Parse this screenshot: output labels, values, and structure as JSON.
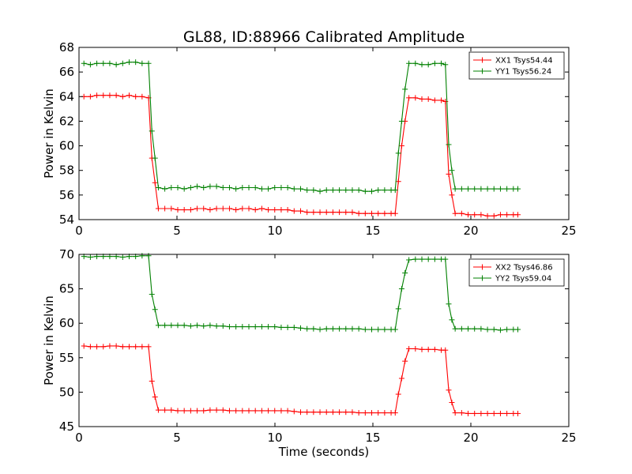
{
  "chart_data": [
    {
      "type": "line",
      "title": "GL88, ID:88966 Calibrated Amplitude",
      "xlabel": "",
      "ylabel": "Power in Kelvin",
      "xlim": [
        0,
        25
      ],
      "ylim": [
        54,
        68
      ],
      "xticks": [
        0,
        5,
        10,
        15,
        20,
        25
      ],
      "yticks": [
        54,
        56,
        58,
        60,
        62,
        64,
        66,
        68
      ],
      "grid": false,
      "legend_position": "top-right",
      "marker": "+",
      "series": [
        {
          "name": "XX1 Tsys54.44",
          "color": "#ff0000",
          "x": [
            0.25,
            0.58,
            0.91,
            1.24,
            1.57,
            1.9,
            2.23,
            2.56,
            2.89,
            3.22,
            3.55,
            3.72,
            3.88,
            4.05,
            4.38,
            4.71,
            5.04,
            5.37,
            5.7,
            6.03,
            6.36,
            6.69,
            7.02,
            7.35,
            7.68,
            8.01,
            8.34,
            8.67,
            9.0,
            9.33,
            9.66,
            9.99,
            10.32,
            10.65,
            10.98,
            11.31,
            11.64,
            11.97,
            12.3,
            12.63,
            12.96,
            13.29,
            13.62,
            13.95,
            14.28,
            14.61,
            14.94,
            15.27,
            15.6,
            15.93,
            16.14,
            16.3,
            16.47,
            16.64,
            16.84,
            17.17,
            17.5,
            17.83,
            18.16,
            18.49,
            18.7,
            18.87,
            19.03,
            19.2,
            19.53,
            19.86,
            20.19,
            20.52,
            20.85,
            21.18,
            21.51,
            21.84,
            22.17,
            22.4
          ],
          "y": [
            64.0,
            64.0,
            64.1,
            64.1,
            64.1,
            64.1,
            64.0,
            64.1,
            64.0,
            64.0,
            63.9,
            59.0,
            57.0,
            54.9,
            54.9,
            54.9,
            54.8,
            54.8,
            54.8,
            54.9,
            54.9,
            54.8,
            54.9,
            54.9,
            54.9,
            54.8,
            54.9,
            54.9,
            54.8,
            54.9,
            54.8,
            54.8,
            54.8,
            54.8,
            54.7,
            54.7,
            54.6,
            54.6,
            54.6,
            54.6,
            54.6,
            54.6,
            54.6,
            54.6,
            54.5,
            54.5,
            54.5,
            54.5,
            54.5,
            54.5,
            54.5,
            57.1,
            60.0,
            62.0,
            63.9,
            63.9,
            63.8,
            63.8,
            63.7,
            63.7,
            63.6,
            57.7,
            56.0,
            54.5,
            54.5,
            54.4,
            54.4,
            54.4,
            54.3,
            54.3,
            54.4,
            54.4,
            54.4,
            54.4
          ]
        },
        {
          "name": "YY1 Tsys56.24",
          "color": "#008000",
          "x": [
            0.25,
            0.58,
            0.91,
            1.24,
            1.57,
            1.9,
            2.23,
            2.56,
            2.89,
            3.22,
            3.55,
            3.72,
            3.88,
            4.05,
            4.38,
            4.71,
            5.04,
            5.37,
            5.7,
            6.03,
            6.36,
            6.69,
            7.02,
            7.35,
            7.68,
            8.01,
            8.34,
            8.67,
            9.0,
            9.33,
            9.66,
            9.99,
            10.32,
            10.65,
            10.98,
            11.31,
            11.64,
            11.97,
            12.3,
            12.63,
            12.96,
            13.29,
            13.62,
            13.95,
            14.28,
            14.61,
            14.94,
            15.27,
            15.6,
            15.93,
            16.14,
            16.3,
            16.47,
            16.64,
            16.84,
            17.17,
            17.5,
            17.83,
            18.16,
            18.49,
            18.7,
            18.87,
            19.03,
            19.2,
            19.53,
            19.86,
            20.19,
            20.52,
            20.85,
            21.18,
            21.51,
            21.84,
            22.17,
            22.4
          ],
          "y": [
            66.7,
            66.6,
            66.7,
            66.7,
            66.7,
            66.6,
            66.7,
            66.8,
            66.8,
            66.7,
            66.7,
            61.2,
            59.0,
            56.6,
            56.5,
            56.6,
            56.6,
            56.5,
            56.6,
            56.7,
            56.6,
            56.7,
            56.7,
            56.6,
            56.6,
            56.5,
            56.6,
            56.6,
            56.6,
            56.5,
            56.5,
            56.6,
            56.6,
            56.6,
            56.5,
            56.5,
            56.4,
            56.4,
            56.3,
            56.4,
            56.4,
            56.4,
            56.4,
            56.4,
            56.4,
            56.3,
            56.3,
            56.4,
            56.4,
            56.4,
            56.4,
            59.4,
            62.0,
            64.6,
            66.7,
            66.7,
            66.6,
            66.6,
            66.7,
            66.7,
            66.6,
            60.1,
            58.0,
            56.5,
            56.5,
            56.5,
            56.5,
            56.5,
            56.5,
            56.5,
            56.5,
            56.5,
            56.5,
            56.5
          ]
        }
      ]
    },
    {
      "type": "line",
      "title": "",
      "xlabel": "Time (seconds)",
      "ylabel": "Power in Kelvin",
      "xlim": [
        0,
        25
      ],
      "ylim": [
        45,
        70
      ],
      "xticks": [
        0,
        5,
        10,
        15,
        20,
        25
      ],
      "yticks": [
        45,
        50,
        55,
        60,
        65,
        70
      ],
      "grid": false,
      "legend_position": "top-right",
      "marker": "+",
      "series": [
        {
          "name": "XX2 Tsys46.86",
          "color": "#ff0000",
          "x": [
            0.25,
            0.58,
            0.91,
            1.24,
            1.57,
            1.9,
            2.23,
            2.56,
            2.89,
            3.22,
            3.55,
            3.72,
            3.88,
            4.05,
            4.38,
            4.71,
            5.04,
            5.37,
            5.7,
            6.03,
            6.36,
            6.69,
            7.02,
            7.35,
            7.68,
            8.01,
            8.34,
            8.67,
            9.0,
            9.33,
            9.66,
            9.99,
            10.32,
            10.65,
            10.98,
            11.31,
            11.64,
            11.97,
            12.3,
            12.63,
            12.96,
            13.29,
            13.62,
            13.95,
            14.28,
            14.61,
            14.94,
            15.27,
            15.6,
            15.93,
            16.14,
            16.3,
            16.47,
            16.64,
            16.84,
            17.17,
            17.5,
            17.83,
            18.16,
            18.49,
            18.7,
            18.87,
            19.03,
            19.2,
            19.53,
            19.86,
            20.19,
            20.52,
            20.85,
            21.18,
            21.51,
            21.84,
            22.17,
            22.4
          ],
          "y": [
            56.7,
            56.6,
            56.6,
            56.6,
            56.7,
            56.7,
            56.6,
            56.6,
            56.6,
            56.6,
            56.6,
            51.6,
            49.3,
            47.4,
            47.4,
            47.4,
            47.3,
            47.3,
            47.3,
            47.3,
            47.3,
            47.4,
            47.4,
            47.4,
            47.3,
            47.3,
            47.3,
            47.3,
            47.3,
            47.3,
            47.3,
            47.3,
            47.3,
            47.3,
            47.2,
            47.1,
            47.1,
            47.1,
            47.1,
            47.1,
            47.1,
            47.1,
            47.1,
            47.1,
            47.0,
            47.0,
            47.0,
            47.0,
            47.0,
            47.0,
            47.0,
            49.7,
            52.0,
            54.5,
            56.3,
            56.3,
            56.2,
            56.2,
            56.2,
            56.1,
            56.1,
            50.3,
            48.5,
            47.0,
            47.0,
            46.9,
            46.9,
            46.9,
            46.9,
            46.9,
            46.9,
            46.9,
            46.9,
            46.9
          ]
        },
        {
          "name": "YY2 Tsys59.04",
          "color": "#008000",
          "x": [
            0.25,
            0.58,
            0.91,
            1.24,
            1.57,
            1.9,
            2.23,
            2.56,
            2.89,
            3.22,
            3.55,
            3.72,
            3.88,
            4.05,
            4.38,
            4.71,
            5.04,
            5.37,
            5.7,
            6.03,
            6.36,
            6.69,
            7.02,
            7.35,
            7.68,
            8.01,
            8.34,
            8.67,
            9.0,
            9.33,
            9.66,
            9.99,
            10.32,
            10.65,
            10.98,
            11.31,
            11.64,
            11.97,
            12.3,
            12.63,
            12.96,
            13.29,
            13.62,
            13.95,
            14.28,
            14.61,
            14.94,
            15.27,
            15.6,
            15.93,
            16.14,
            16.3,
            16.47,
            16.64,
            16.84,
            17.17,
            17.5,
            17.83,
            18.16,
            18.49,
            18.7,
            18.87,
            19.03,
            19.2,
            19.53,
            19.86,
            20.19,
            20.52,
            20.85,
            21.18,
            21.51,
            21.84,
            22.17,
            22.4
          ],
          "y": [
            69.7,
            69.6,
            69.7,
            69.7,
            69.7,
            69.7,
            69.6,
            69.7,
            69.7,
            69.8,
            69.8,
            64.2,
            62.0,
            59.7,
            59.7,
            59.7,
            59.7,
            59.7,
            59.6,
            59.7,
            59.6,
            59.7,
            59.6,
            59.6,
            59.5,
            59.5,
            59.5,
            59.5,
            59.5,
            59.5,
            59.5,
            59.5,
            59.4,
            59.4,
            59.4,
            59.3,
            59.2,
            59.2,
            59.1,
            59.2,
            59.2,
            59.2,
            59.2,
            59.2,
            59.2,
            59.1,
            59.1,
            59.1,
            59.1,
            59.1,
            59.1,
            62.1,
            65.0,
            67.3,
            69.2,
            69.3,
            69.3,
            69.3,
            69.3,
            69.3,
            69.3,
            62.8,
            60.5,
            59.2,
            59.2,
            59.2,
            59.2,
            59.2,
            59.1,
            59.1,
            59.0,
            59.1,
            59.1,
            59.1
          ]
        }
      ]
    }
  ]
}
